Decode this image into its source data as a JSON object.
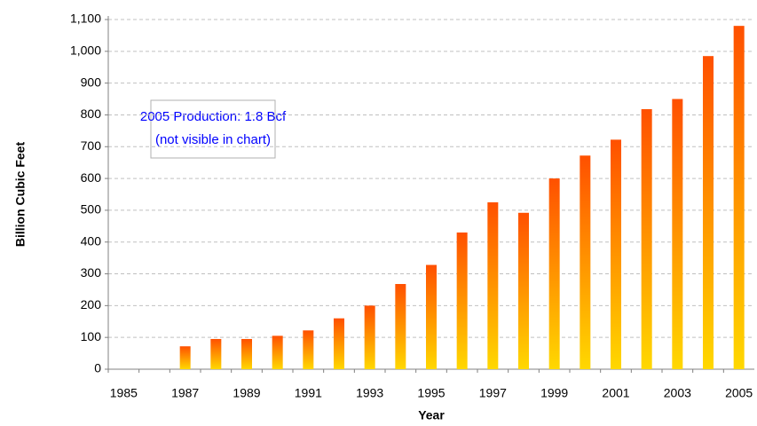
{
  "chart_data": {
    "type": "bar",
    "y_label": "Billion Cubic Feet",
    "x_label": "Year",
    "annotations": [
      "2005 Production: 1.8 Bcf",
      "(not visible in chart)"
    ],
    "categories": [
      "1985",
      null,
      "1987",
      null,
      "1989",
      null,
      "1991",
      null,
      "1993",
      null,
      "1995",
      null,
      "1997",
      null,
      "1999",
      null,
      "2001",
      null,
      "2003",
      null,
      "2005"
    ],
    "values": [
      0,
      0,
      72,
      95,
      95,
      105,
      122,
      160,
      200,
      268,
      328,
      430,
      525,
      492,
      600,
      672,
      722,
      818,
      850,
      985,
      1080
    ],
    "color": [
      "#ff5000",
      "#ffd800"
    ],
    "ylim": [
      0,
      1100
    ],
    "yticks": [
      0,
      100,
      200,
      300,
      400,
      500,
      600,
      700,
      800,
      900,
      {
        "value": 1000,
        "label": "1,000"
      },
      {
        "value": 1100,
        "label": "1,100"
      }
    ],
    "grid": true
  }
}
